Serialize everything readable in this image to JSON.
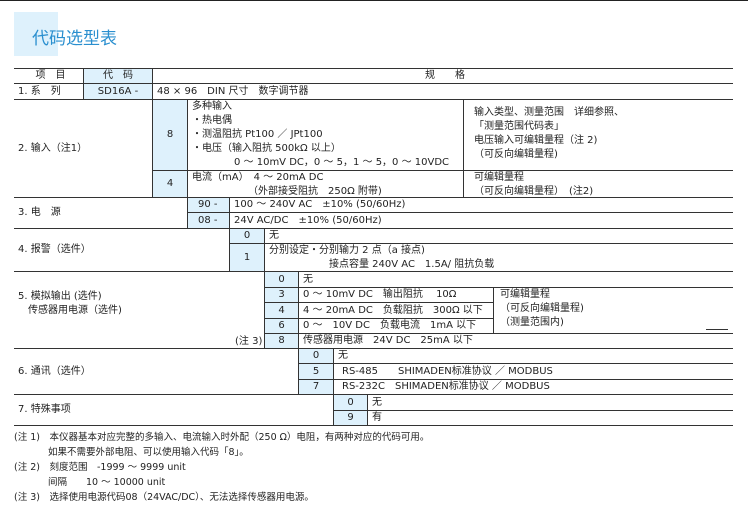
{
  "title": "代码选型表",
  "header": {
    "item": "项　目",
    "code": "代　码",
    "spec": "规　　格"
  },
  "series": {
    "label": "1. 系　列",
    "code": "SD16A -",
    "spec": "48 × 96　DIN 尺寸　数字调节器"
  },
  "input": {
    "label": "2. 输入（注1）",
    "opt8": {
      "code": "8",
      "lines": [
        "多种输入",
        "・热电偶",
        "・测温阻抗 Pt100 ／ JPt100",
        "・电压（输入阻抗 500kΩ 以上）",
        "0 ～ 10mV DC，0 ～ 5，1 ～ 5，0 ～ 10VDC"
      ],
      "remarks": [
        "输入类型、测量范围　详细参照、",
        "「测量范围代码表」",
        "电压输入可编辑量程（注 2)",
        "（可反向编辑量程)"
      ]
    },
    "opt4": {
      "code": "4",
      "lines": [
        "电流（mA）　4 ～ 20mA DC",
        "（外部接受阻抗　250Ω 附带)"
      ],
      "remarks": [
        "可编辑量程",
        "（可反向编辑量程）　(注2)"
      ]
    }
  },
  "power": {
    "label": "3. 电　源",
    "options": [
      {
        "code": "90 -",
        "text": "100 ～ 240V AC　±10% (50/60Hz)"
      },
      {
        "code": "08 -",
        "text": "24V AC/DC　±10% (50/60Hz)"
      }
    ]
  },
  "alarm": {
    "label": "4. 报警（选件）",
    "options": [
      {
        "code": "0",
        "text": "无"
      },
      {
        "code": "1",
        "lines": [
          "分别设定・分别输力 2 点（a 接点)",
          "接点容量 240V AC　1.5A/ 阻抗负载"
        ]
      }
    ]
  },
  "analog": {
    "label": [
      "5. 模拟输出 (选件)",
      "　传感器用电源（选件)"
    ],
    "note": "(注 3)",
    "options": [
      {
        "code": "0",
        "text": "无"
      },
      {
        "code": "3",
        "text": "0 ～ 10mV DC　输出阻抗　 10Ω"
      },
      {
        "code": "4",
        "text": "4 ～ 20mA DC　负载阻抗　300Ω 以下"
      },
      {
        "code": "6",
        "text": "0 ～　10V DC　负载电流　1mA 以下"
      },
      {
        "code": "8",
        "text": "传感器用电源　24V DC　25mA 以下"
      }
    ],
    "remarks": [
      "可编辑量程",
      "（可反向编辑量程)",
      "（测量范围内)"
    ]
  },
  "comm": {
    "label": "6. 通讯（选件）",
    "options": [
      {
        "code": "0",
        "text": "无"
      },
      {
        "code": "5",
        "text": "RS-485　　SHIMADEN标准协议 ／ MODBUS"
      },
      {
        "code": "7",
        "text": "RS-232C　SHIMADEN标准协议 ／ MODBUS"
      }
    ]
  },
  "special": {
    "label": "7. 特殊事项",
    "options": [
      {
        "code": "0",
        "text": "无"
      },
      {
        "code": "9",
        "text": "有"
      }
    ]
  },
  "notes": [
    "(注 1)　本仪器基本对应完整的多输入、电流输入时外配（250 Ω）电阻，有两种对应的代码可用。",
    "如果不需要外部电阻、可以使用输入代码「8」。",
    "(注 2)　刻度范围　-1999 ～ 9999 unit",
    "间隔　　10 ～ 10000 unit",
    "(注 3)　选择使用电源代码08（24VAC/DC）、无法选择传感器用电源。"
  ]
}
